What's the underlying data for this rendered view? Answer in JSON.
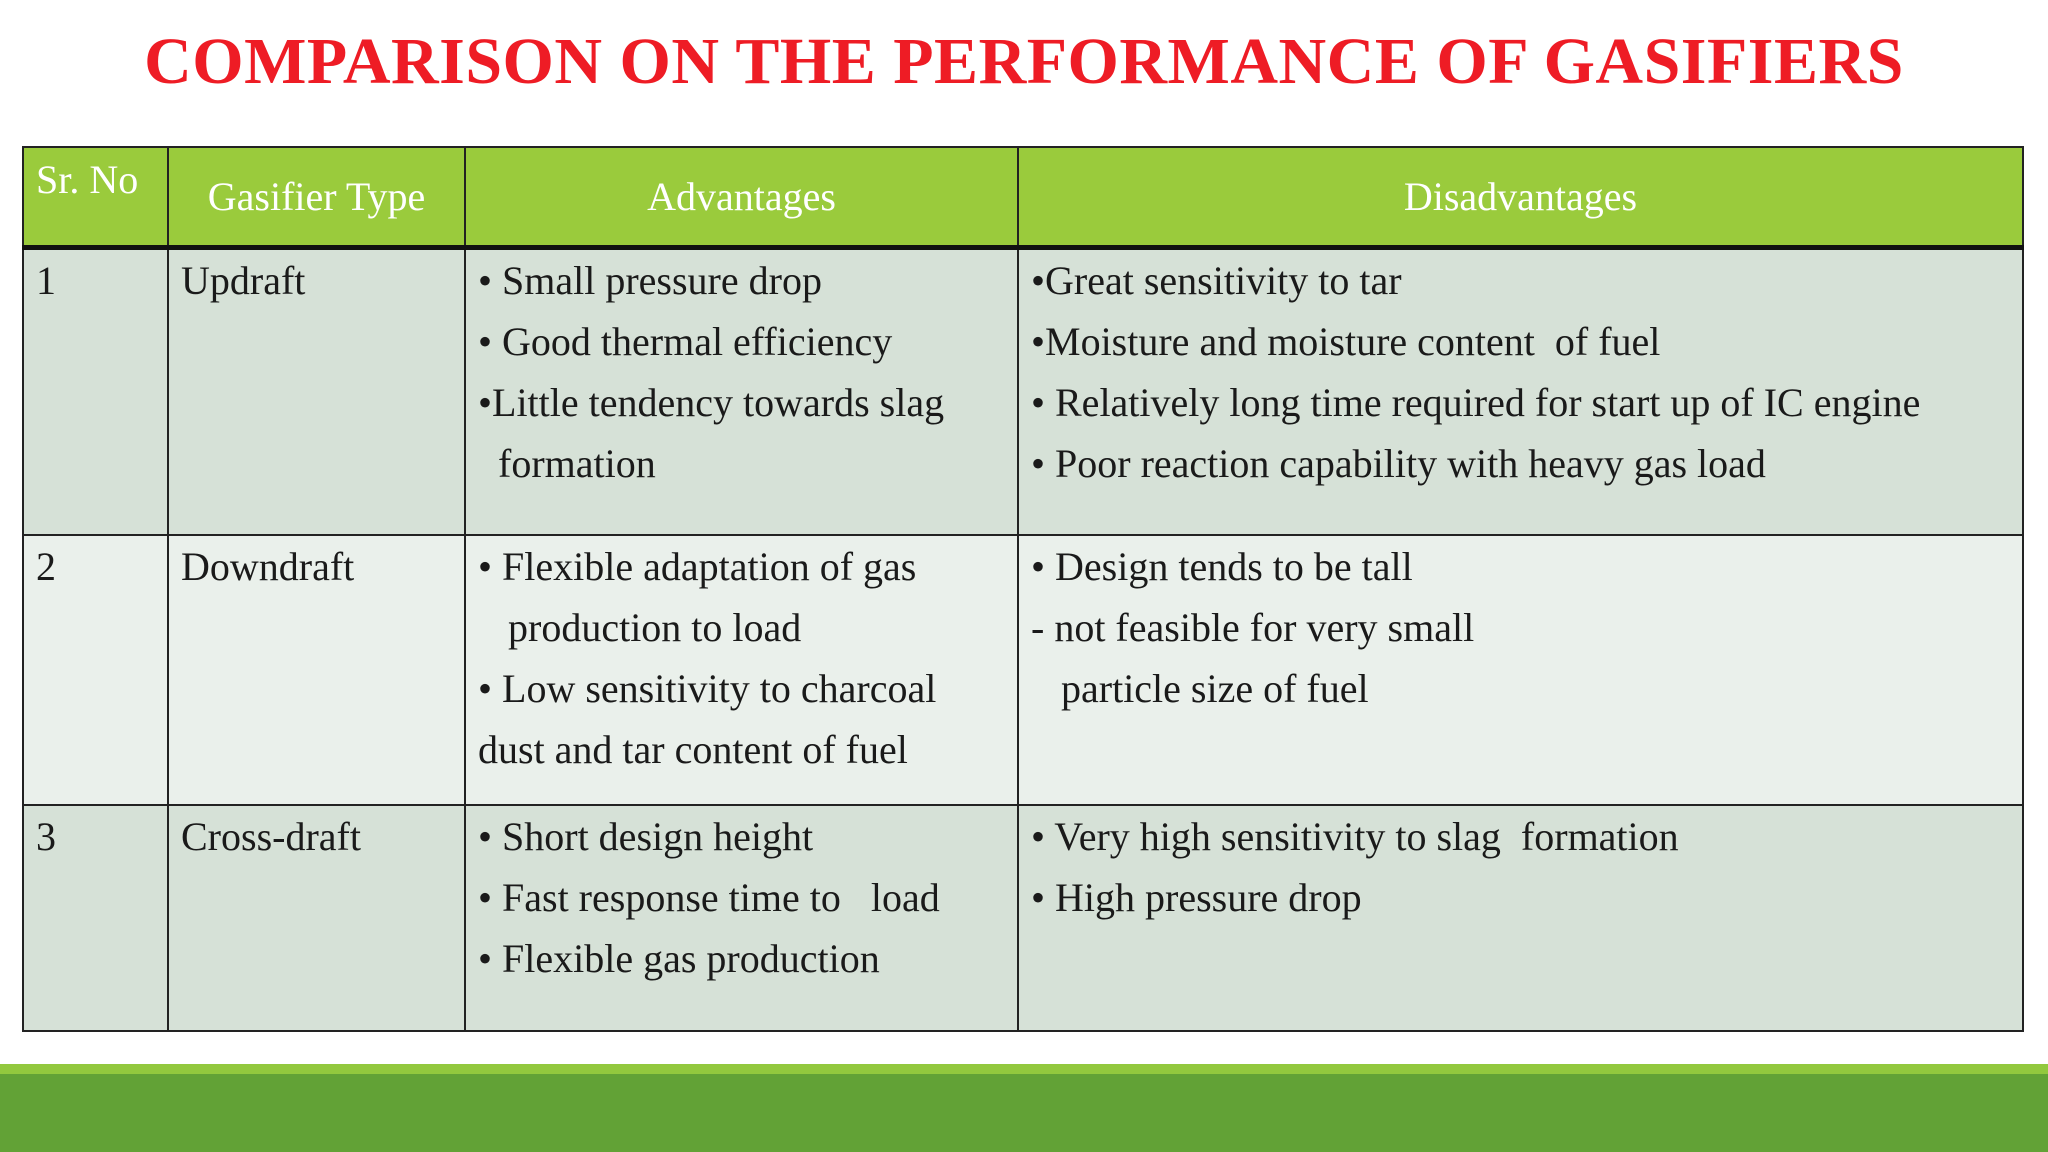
{
  "title": "COMPARISON ON THE PERFORMANCE OF GASIFIERS",
  "columns": [
    "Sr. No",
    "Gasifier Type",
    "Advantages",
    "Disadvantages"
  ],
  "rows": [
    {
      "no": "1",
      "type": "Updraft",
      "advantages": [
        "• Small pressure drop",
        "• Good thermal efficiency",
        "•Little tendency towards slag",
        "  formation"
      ],
      "disadvantages": [
        "•Great sensitivity to tar",
        "•Moisture and moisture content  of fuel",
        "• Relatively long time required for start up of IC engine",
        "• Poor reaction capability with heavy gas load"
      ]
    },
    {
      "no": "2",
      "type": "Downdraft",
      "advantages": [
        "• Flexible adaptation of gas",
        "   production to load",
        "• Low sensitivity to charcoal",
        "dust and tar content of fuel"
      ],
      "disadvantages": [
        "• Design tends to be tall",
        "- not feasible for very small",
        "   particle size of fuel"
      ]
    },
    {
      "no": "3",
      "type": "Cross-draft",
      "advantages": [
        "• Short design height",
        "• Fast response time to   load",
        "• Flexible gas production"
      ],
      "disadvantages": [
        "• Very high sensitivity to slag  formation",
        "• High pressure drop"
      ]
    }
  ],
  "colors": {
    "title": "#ee1c25",
    "header_bg": "#9acb3c",
    "row_dark": "#d6e1d7",
    "row_light": "#eaf0eb",
    "footer_line": "#92c83e",
    "footer_bar": "#62a236"
  }
}
